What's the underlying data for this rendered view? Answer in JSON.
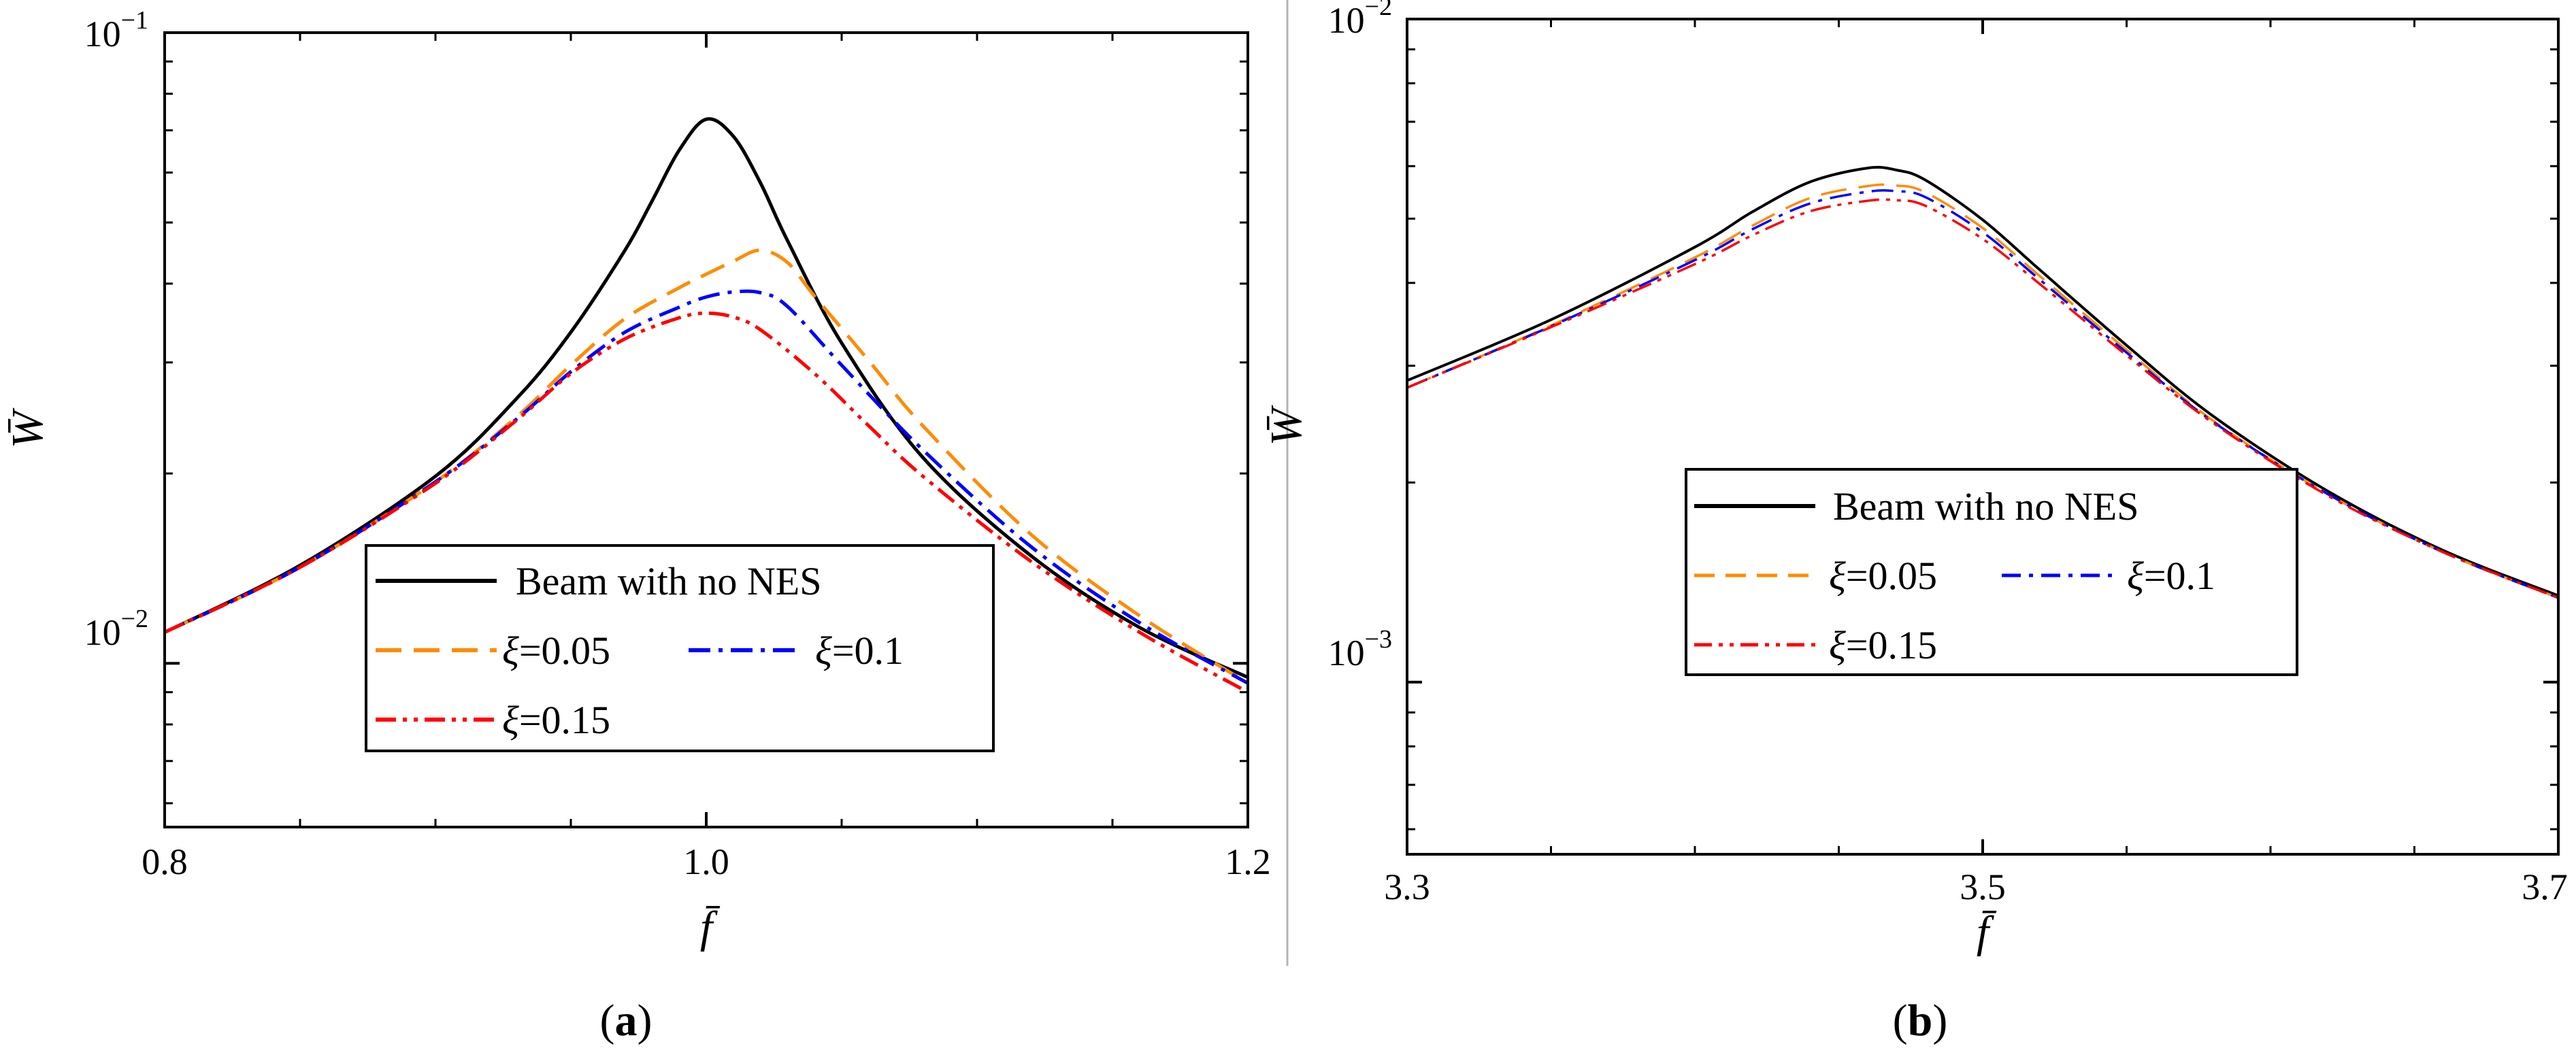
{
  "colors": {
    "base": "#000000",
    "xi005": "#ff8c00",
    "xi01": "#0000ff",
    "xi015": "#ff0000",
    "divider": "#b4b4b4"
  },
  "chart_data": [
    {
      "type": "line",
      "panel": "a",
      "caption": {
        "open": "(",
        "letter": "a",
        "close": ")"
      },
      "xlabel": "f̄",
      "ylabel": "W̄",
      "xlim": [
        0.8,
        1.2
      ],
      "ylim": [
        0.0055,
        0.1
      ],
      "yscale": "log",
      "xticks": [
        {
          "value": 0.8,
          "label": "0.8"
        },
        {
          "value": 1.0,
          "label": "1.0"
        },
        {
          "value": 1.2,
          "label": "1.2"
        }
      ],
      "yticks": [
        {
          "value": 0.1,
          "base": "10",
          "exp": "−1"
        },
        {
          "value": 0.01,
          "base": "10",
          "exp": "−2"
        }
      ],
      "legend": {
        "position": "lower-center",
        "entries": [
          {
            "text": "Beam with no NES"
          },
          {
            "sym": "ξ",
            "text": "=0.05"
          },
          {
            "sym": "ξ",
            "text": "=0.1"
          },
          {
            "sym": "ξ",
            "text": "=0.15"
          }
        ]
      },
      "series": [
        {
          "name": "Beam with no NES",
          "x": [
            0.8,
            0.85,
            0.9,
            0.93,
            0.95,
            0.97,
            0.98,
            0.99,
            1.0,
            1.01,
            1.02,
            1.03,
            1.05,
            1.08,
            1.12,
            1.16,
            1.2
          ],
          "y": [
            0.0112,
            0.0143,
            0.0198,
            0.0263,
            0.0335,
            0.0452,
            0.0541,
            0.0651,
            0.0729,
            0.0685,
            0.0578,
            0.0468,
            0.0322,
            0.0212,
            0.0148,
            0.0114,
            0.0095
          ]
        },
        {
          "name": "ξ=0.05",
          "x": [
            0.8,
            0.85,
            0.9,
            0.93,
            0.95,
            0.97,
            0.99,
            1.0,
            1.01,
            1.02,
            1.03,
            1.04,
            1.06,
            1.08,
            1.12,
            1.16,
            1.2
          ],
          "y": [
            0.0112,
            0.0142,
            0.0194,
            0.0246,
            0.0297,
            0.0352,
            0.0394,
            0.0414,
            0.0434,
            0.0452,
            0.0432,
            0.0382,
            0.0302,
            0.0238,
            0.016,
            0.0119,
            0.0093
          ]
        },
        {
          "name": "ξ=0.1",
          "x": [
            0.8,
            0.85,
            0.9,
            0.93,
            0.95,
            0.97,
            0.99,
            1.0,
            1.01,
            1.02,
            1.03,
            1.05,
            1.08,
            1.12,
            1.16,
            1.2
          ],
          "y": [
            0.0112,
            0.0142,
            0.0194,
            0.0244,
            0.029,
            0.0335,
            0.0367,
            0.0381,
            0.0388,
            0.0387,
            0.0368,
            0.0297,
            0.0218,
            0.0153,
            0.0116,
            0.0093
          ]
        },
        {
          "name": "ξ=0.15",
          "x": [
            0.8,
            0.85,
            0.9,
            0.93,
            0.95,
            0.97,
            0.99,
            1.0,
            1.01,
            1.02,
            1.04,
            1.06,
            1.08,
            1.12,
            1.16,
            1.2
          ],
          "y": [
            0.0112,
            0.0142,
            0.0193,
            0.0243,
            0.0288,
            0.0327,
            0.0353,
            0.0359,
            0.0354,
            0.0338,
            0.0288,
            0.0238,
            0.0198,
            0.0145,
            0.0112,
            0.009
          ]
        }
      ]
    },
    {
      "type": "line",
      "panel": "b",
      "caption": {
        "open": "(",
        "letter": "b",
        "close": ")"
      },
      "xlabel": "f̄",
      "ylabel": "W̄",
      "xlim": [
        3.3,
        3.7
      ],
      "ylim": [
        0.00055,
        0.01
      ],
      "yscale": "log",
      "xticks": [
        {
          "value": 3.3,
          "label": "3.3"
        },
        {
          "value": 3.5,
          "label": "3.5"
        },
        {
          "value": 3.7,
          "label": "3.7"
        }
      ],
      "yticks": [
        {
          "value": 0.01,
          "base": "10",
          "exp": "−2"
        },
        {
          "value": 0.001,
          "base": "10",
          "exp": "−3"
        }
      ],
      "legend": {
        "position": "lower-center",
        "entries": [
          {
            "text": "Beam with no NES"
          },
          {
            "sym": "ξ",
            "text": "=0.05"
          },
          {
            "sym": "ξ",
            "text": "=0.1"
          },
          {
            "sym": "ξ",
            "text": "=0.15"
          }
        ]
      },
      "series": [
        {
          "name": "Beam with no NES",
          "x": [
            3.3,
            3.35,
            3.4,
            3.42,
            3.44,
            3.46,
            3.47,
            3.48,
            3.5,
            3.52,
            3.55,
            3.58,
            3.62,
            3.66,
            3.7
          ],
          "y": [
            0.00285,
            0.00352,
            0.00453,
            0.00512,
            0.00568,
            0.00596,
            0.00592,
            0.00572,
            0.00498,
            0.00418,
            0.00322,
            0.00252,
            0.00194,
            0.00158,
            0.00135
          ]
        },
        {
          "name": "ξ=0.05",
          "x": [
            3.3,
            3.35,
            3.4,
            3.42,
            3.44,
            3.46,
            3.47,
            3.48,
            3.5,
            3.52,
            3.55,
            3.58,
            3.62,
            3.66,
            3.7
          ],
          "y": [
            0.00278,
            0.00345,
            0.00437,
            0.00488,
            0.00537,
            0.0056,
            0.00561,
            0.00548,
            0.00484,
            0.00409,
            0.00317,
            0.00248,
            0.00192,
            0.00157,
            0.00134
          ]
        },
        {
          "name": "ξ=0.1",
          "x": [
            3.3,
            3.35,
            3.4,
            3.42,
            3.44,
            3.46,
            3.47,
            3.48,
            3.5,
            3.52,
            3.55,
            3.58,
            3.62,
            3.66,
            3.7
          ],
          "y": [
            0.00278,
            0.00344,
            0.00433,
            0.00482,
            0.00527,
            0.00549,
            0.0055,
            0.00539,
            0.00477,
            0.00404,
            0.00314,
            0.00247,
            0.00192,
            0.00157,
            0.00134
          ]
        },
        {
          "name": "ξ=0.15",
          "x": [
            3.3,
            3.35,
            3.4,
            3.42,
            3.44,
            3.46,
            3.47,
            3.48,
            3.5,
            3.52,
            3.55,
            3.58,
            3.62,
            3.66,
            3.7
          ],
          "y": [
            0.00278,
            0.00343,
            0.00427,
            0.00472,
            0.00513,
            0.00532,
            0.00533,
            0.00523,
            0.00466,
            0.00398,
            0.00311,
            0.00246,
            0.00191,
            0.00157,
            0.00134
          ]
        }
      ]
    }
  ]
}
